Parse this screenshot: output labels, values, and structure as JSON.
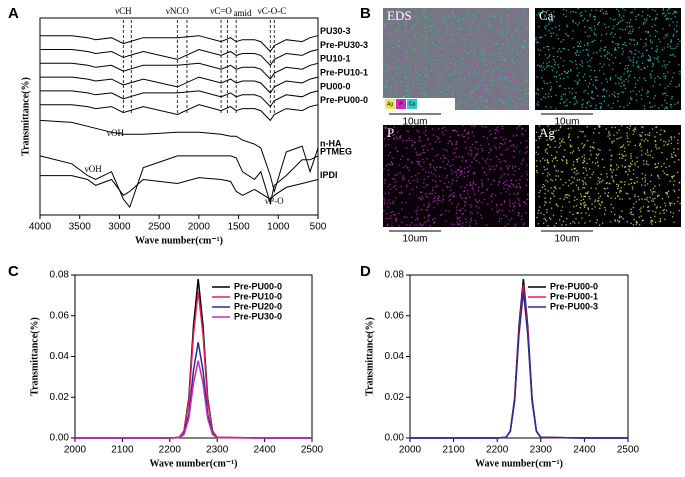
{
  "panels": [
    "A",
    "B",
    "C",
    "D"
  ],
  "images": [
    {
      "label": "EDS",
      "scale": "10um",
      "dot_color": "#c040c0",
      "background": "#707a80",
      "legend": [
        "Ag",
        "P",
        "Ca"
      ]
    },
    {
      "label": "Ca",
      "scale": "10um",
      "dot_color": "#30c8c8",
      "background": "#000000"
    },
    {
      "label": "P",
      "scale": "10um",
      "dot_color": "#c030c0",
      "background": "#0a000a"
    },
    {
      "label": "Ag",
      "scale": "10um",
      "dot_color": "#e8e860",
      "background": "#000000"
    }
  ],
  "chart_data": [
    {
      "type": "line",
      "xlabel": "Wave number(cm⁻¹)",
      "ylabel": "Transmittance(%)",
      "x": [
        4000,
        3600,
        3400,
        3300,
        3100,
        2950,
        2870,
        2700,
        2270,
        2000,
        1720,
        1600,
        1530,
        1450,
        1300,
        1220,
        1100,
        1050,
        900,
        700,
        600,
        500
      ],
      "xlim": [
        4000,
        500
      ],
      "xticks": [
        4000,
        3500,
        3000,
        2500,
        2000,
        1500,
        1000,
        500
      ],
      "ylim": [
        0,
        100
      ],
      "legend": "labels-right",
      "annotations": [
        "νCH",
        "νNCO",
        "νC=O",
        "amid",
        "νC-O-C",
        "νOH",
        "νOH",
        "νP-O"
      ],
      "series": [
        {
          "name": "PU30-3",
          "color": "#000000",
          "values": [
            91,
            91,
            90,
            89,
            90,
            87,
            88,
            90,
            90,
            91,
            88,
            90,
            88,
            89,
            89,
            88,
            83,
            86,
            89,
            88,
            90,
            91
          ]
        },
        {
          "name": "Pre-PU30-3",
          "color": "#000000",
          "values": [
            84,
            84,
            83,
            82,
            83,
            80,
            81,
            83,
            79,
            84,
            81,
            83,
            81,
            82,
            82,
            81,
            76,
            79,
            82,
            81,
            83,
            84
          ]
        },
        {
          "name": "PU10-1",
          "color": "#000000",
          "values": [
            77,
            77,
            76,
            75,
            76,
            73,
            74,
            76,
            76,
            77,
            74,
            76,
            74,
            75,
            75,
            74,
            69,
            72,
            75,
            74,
            76,
            77
          ]
        },
        {
          "name": "Pre-PU10-1",
          "color": "#000000",
          "values": [
            70,
            70,
            69,
            68,
            69,
            66,
            67,
            69,
            65,
            70,
            67,
            69,
            67,
            68,
            68,
            67,
            62,
            65,
            68,
            67,
            69,
            70
          ]
        },
        {
          "name": "PU00-0",
          "color": "#000000",
          "values": [
            63,
            63,
            62,
            61,
            62,
            59,
            60,
            62,
            62,
            63,
            60,
            62,
            60,
            61,
            61,
            60,
            55,
            58,
            61,
            60,
            62,
            63
          ]
        },
        {
          "name": "Pre-PU00-0",
          "color": "#000000",
          "values": [
            56,
            56,
            55,
            54,
            55,
            52,
            53,
            55,
            51,
            56,
            53,
            55,
            53,
            54,
            54,
            53,
            48,
            51,
            54,
            53,
            55,
            56
          ]
        },
        {
          "name": "n-HA",
          "color": "#000000",
          "values": [
            48,
            47,
            45,
            44,
            42,
            41,
            41,
            41,
            42,
            42,
            41,
            40,
            40,
            38,
            36,
            34,
            20,
            12,
            32,
            35,
            22,
            34
          ]
        },
        {
          "name": "PTMEG",
          "color": "#000000",
          "values": [
            30,
            26,
            20,
            18,
            22,
            8,
            4,
            24,
            30,
            30,
            30,
            30,
            29,
            22,
            18,
            22,
            6,
            15,
            20,
            28,
            28,
            30
          ]
        },
        {
          "name": "IPDI",
          "color": "#000000",
          "values": [
            20,
            20,
            18,
            15,
            18,
            10,
            12,
            18,
            16,
            19,
            18,
            17,
            12,
            10,
            13,
            11,
            8,
            10,
            14,
            16,
            17,
            18
          ]
        }
      ]
    },
    {
      "type": "line",
      "xlabel": "Wave number(cm⁻¹)",
      "ylabel": "Transmittance(%)",
      "x": [
        2000,
        2100,
        2200,
        2220,
        2230,
        2240,
        2250,
        2260,
        2270,
        2280,
        2290,
        2300,
        2400,
        2500
      ],
      "xlim": [
        2000,
        2500
      ],
      "xticks": [
        2000,
        2100,
        2200,
        2300,
        2400,
        2500
      ],
      "ylim": [
        0,
        0.08
      ],
      "yticks": [
        {
          "value": 0,
          "label": "0.00"
        },
        {
          "value": 0.02,
          "label": "0.02"
        },
        {
          "value": 0.04,
          "label": "0.04"
        },
        {
          "value": 0.06,
          "label": "0.06"
        },
        {
          "value": 0.08,
          "label": "0.08"
        }
      ],
      "legend": "top-right",
      "series": [
        {
          "name": "Pre-PU00-0",
          "color": "#000000",
          "values": [
            0,
            0,
            0,
            0.0003,
            0.0034,
            0.0194,
            0.0551,
            0.078,
            0.0551,
            0.0194,
            0.0034,
            0.0003,
            0,
            0
          ]
        },
        {
          "name": "Pre-PU10-0",
          "color": "#e0205a",
          "values": [
            0,
            0,
            0,
            0.0003,
            0.0032,
            0.0179,
            0.0509,
            0.072,
            0.0509,
            0.0179,
            0.0032,
            0.0003,
            0,
            0
          ]
        },
        {
          "name": "Pre-PU20-0",
          "color": "#2a2a9a",
          "values": [
            0,
            0,
            0,
            0.0002,
            0.0021,
            0.0117,
            0.0332,
            0.047,
            0.0332,
            0.0117,
            0.0021,
            0.0002,
            0,
            0
          ]
        },
        {
          "name": "Pre-PU30-0",
          "color": "#c030b0",
          "values": [
            0,
            0,
            0,
            0.0001,
            0.0017,
            0.0095,
            0.0269,
            0.038,
            0.0269,
            0.0095,
            0.0017,
            0.0001,
            0,
            0
          ]
        }
      ]
    },
    {
      "type": "line",
      "xlabel": "Wave number(cm⁻¹)",
      "ylabel": "Transmittance(%)",
      "x": [
        2000,
        2100,
        2200,
        2220,
        2230,
        2240,
        2250,
        2260,
        2270,
        2280,
        2290,
        2300,
        2400,
        2500
      ],
      "xlim": [
        2000,
        2500
      ],
      "xticks": [
        2000,
        2100,
        2200,
        2300,
        2400,
        2500
      ],
      "ylim": [
        0,
        0.08
      ],
      "yticks": [
        {
          "value": 0,
          "label": "0.00"
        },
        {
          "value": 0.02,
          "label": "0.02"
        },
        {
          "value": 0.04,
          "label": "0.04"
        },
        {
          "value": 0.06,
          "label": "0.06"
        },
        {
          "value": 0.08,
          "label": "0.08"
        }
      ],
      "legend": "top-right",
      "series": [
        {
          "name": "Pre-PU00-0",
          "color": "#000000",
          "values": [
            0,
            0,
            0,
            0.0003,
            0.0034,
            0.0194,
            0.0551,
            0.078,
            0.0551,
            0.0194,
            0.0034,
            0.0003,
            0,
            0
          ]
        },
        {
          "name": "Pre-PU00-1",
          "color": "#e0205a",
          "values": [
            0,
            0,
            0,
            0.0003,
            0.0033,
            0.0187,
            0.053,
            0.075,
            0.053,
            0.0187,
            0.0033,
            0.0003,
            0,
            0
          ]
        },
        {
          "name": "Pre-PU00-3",
          "color": "#2a2a9a",
          "values": [
            0,
            0,
            0,
            0.0003,
            0.0032,
            0.0179,
            0.0509,
            0.072,
            0.0509,
            0.0179,
            0.0032,
            0.0003,
            0,
            0
          ]
        }
      ]
    }
  ]
}
